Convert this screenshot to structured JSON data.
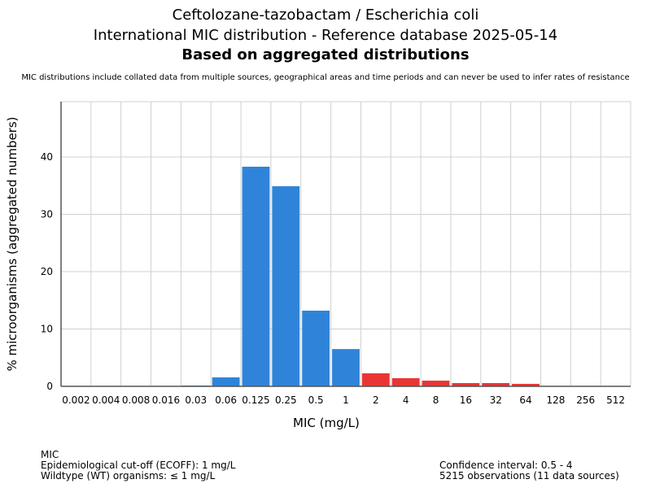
{
  "chart_data": {
    "type": "bar",
    "title": "Ceftolozane-tazobactam / Escherichia coli",
    "subtitle": "International MIC distribution - Reference database 2025-05-14",
    "subtitle2": "Based on aggregated distributions",
    "note": "MIC distributions include collated data from multiple sources, geographical areas and time periods and can never be used to infer rates of resistance",
    "xlabel": "MIC (mg/L)",
    "ylabel": "% microorganisms (aggregated numbers)",
    "ylim": [
      0,
      50
    ],
    "yticks": [
      0,
      10,
      20,
      30,
      40
    ],
    "grid": true,
    "categories": [
      "0.002",
      "0.004",
      "0.008",
      "0.016",
      "0.03",
      "0.06",
      "0.125",
      "0.25",
      "0.5",
      "1",
      "2",
      "4",
      "8",
      "16",
      "32",
      "64",
      "128",
      "256",
      "512"
    ],
    "values": [
      0,
      0,
      0,
      0,
      0.14,
      1.56,
      38.3,
      34.9,
      13.2,
      6.5,
      2.27,
      1.42,
      0.99,
      0.57,
      0.57,
      0.43,
      0,
      0,
      0
    ],
    "wildtype_max_index": 9,
    "colors": {
      "wildtype": "#2f84da",
      "non_wildtype": "#ea3535"
    }
  },
  "footer": {
    "left": [
      "MIC",
      "Epidemiological cut-off (ECOFF): 1 mg/L",
      "Wildtype (WT) organisms: ≤ 1 mg/L"
    ],
    "right": [
      "Confidence interval: 0.5 - 4",
      "5215 observations (11 data sources)"
    ]
  }
}
